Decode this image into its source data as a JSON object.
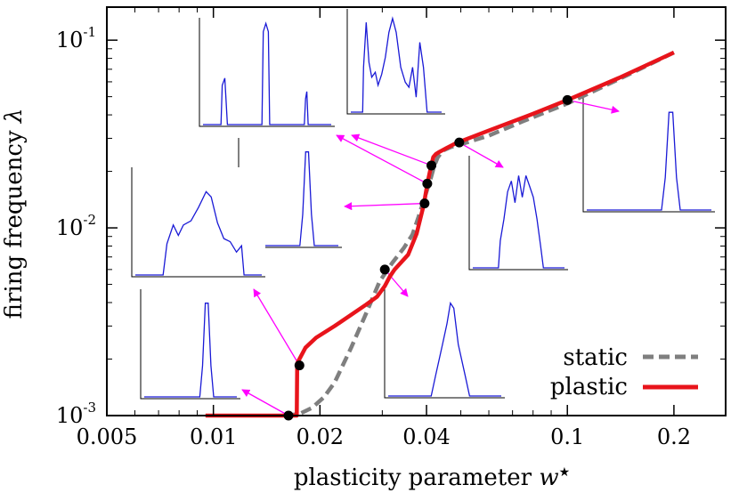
{
  "chart_data": {
    "type": "line",
    "title": "",
    "xlabel": "plasticity parameter",
    "xlabel_symbol": "w",
    "xlabel_sup": "★",
    "ylabel": "firing frequency",
    "ylabel_symbol": "λ",
    "x_scale": "log",
    "y_scale": "log",
    "xlim": [
      0.005,
      0.28
    ],
    "ylim": [
      0.001,
      0.15
    ],
    "grid": false,
    "legend_position": "bottom-right",
    "x_ticks": [
      {
        "value": 0.005,
        "label": "0.005"
      },
      {
        "value": 0.01,
        "label": "0.01"
      },
      {
        "value": 0.02,
        "label": "0.02"
      },
      {
        "value": 0.04,
        "label": "0.04"
      },
      {
        "value": 0.1,
        "label": "0.1"
      },
      {
        "value": 0.2,
        "label": "0.2"
      }
    ],
    "y_ticks": [
      {
        "value": 0.001,
        "base": "10",
        "exp": "-3"
      },
      {
        "value": 0.01,
        "base": "10",
        "exp": "-2"
      },
      {
        "value": 0.1,
        "base": "10",
        "exp": "-1"
      }
    ],
    "series": [
      {
        "name": "static",
        "color": "#7f7f7f",
        "dash": true,
        "x": [
          0.016,
          0.0175,
          0.019,
          0.0205,
          0.022,
          0.0245,
          0.027,
          0.0295,
          0.032,
          0.0345,
          0.0365,
          0.038,
          0.0395,
          0.041,
          0.042,
          0.043,
          0.0445,
          0.047,
          0.052,
          0.06,
          0.075,
          0.1,
          0.14,
          0.2
        ],
        "y": [
          0.001,
          0.00102,
          0.0011,
          0.00125,
          0.0015,
          0.0023,
          0.0035,
          0.0052,
          0.0065,
          0.0078,
          0.0092,
          0.0115,
          0.0145,
          0.018,
          0.0212,
          0.0237,
          0.0258,
          0.027,
          0.0285,
          0.031,
          0.037,
          0.046,
          0.062,
          0.086
        ]
      },
      {
        "name": "plastic",
        "color": "#e8141b",
        "dash": false,
        "x": [
          0.0095,
          0.0165,
          0.0172,
          0.01725,
          0.0182,
          0.0195,
          0.022,
          0.027,
          0.029,
          0.0305,
          0.0315,
          0.0325,
          0.0355,
          0.0375,
          0.0393,
          0.0403,
          0.0408,
          0.0413,
          0.0418,
          0.0425,
          0.0435,
          0.0455,
          0.0485,
          0.06,
          0.08,
          0.1,
          0.14,
          0.2
        ],
        "y": [
          0.001,
          0.001,
          0.001,
          0.0019,
          0.0023,
          0.0026,
          0.003,
          0.0039,
          0.0043,
          0.0049,
          0.0055,
          0.006,
          0.0072,
          0.0093,
          0.0133,
          0.0175,
          0.0195,
          0.0216,
          0.0238,
          0.0247,
          0.0254,
          0.0266,
          0.0283,
          0.033,
          0.0405,
          0.048,
          0.063,
          0.086
        ]
      }
    ],
    "markers": [
      {
        "x": 0.0163,
        "y": 0.001
      },
      {
        "x": 0.0175,
        "y": 0.00185
      },
      {
        "x": 0.0305,
        "y": 0.006
      },
      {
        "x": 0.0395,
        "y": 0.0135
      },
      {
        "x": 0.0402,
        "y": 0.0172
      },
      {
        "x": 0.0413,
        "y": 0.0215
      },
      {
        "x": 0.0495,
        "y": 0.0285
      },
      {
        "x": 0.1,
        "y": 0.048
      }
    ],
    "insets": [
      {
        "id": "inset-a",
        "profile": "three-peaks"
      },
      {
        "id": "inset-b",
        "profile": "multi-peak-wide"
      },
      {
        "id": "inset-c",
        "profile": "narrow-peak"
      },
      {
        "id": "inset-d",
        "profile": "broad-bump"
      },
      {
        "id": "inset-e",
        "profile": "narrow-peak"
      },
      {
        "id": "inset-f",
        "profile": "narrow-peak"
      },
      {
        "id": "inset-g",
        "profile": "triangle-peak"
      },
      {
        "id": "inset-h",
        "profile": "comb-peaks"
      }
    ],
    "arrow_color": "#ff00ff"
  }
}
